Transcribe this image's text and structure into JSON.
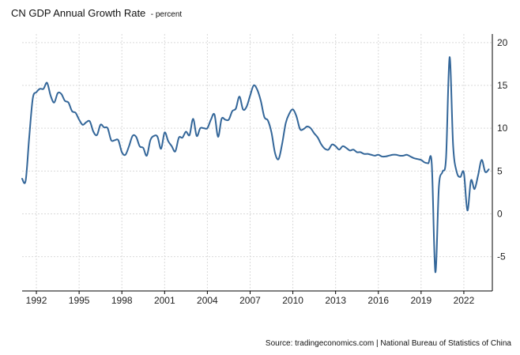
{
  "header": {
    "title": "CN GDP Annual Growth Rate",
    "subtitle": "- percent"
  },
  "footer": {
    "source": "Source: tradingeconomics.com | National Bureau of Statistics of China"
  },
  "colors": {
    "line": "#336699",
    "grid": "#d9d9d9",
    "axis": "#000000"
  },
  "chart_data": {
    "type": "line",
    "title": "CN GDP Annual Growth Rate",
    "subtitle": "- percent",
    "xlabel": "",
    "ylabel": "",
    "xlim": [
      1991.0,
      2024.0
    ],
    "ylim": [
      -9,
      21
    ],
    "x_ticks": [
      1992,
      1995,
      1998,
      2001,
      2004,
      2007,
      2010,
      2013,
      2016,
      2019,
      2022
    ],
    "y_ticks": [
      -5,
      0,
      5,
      10,
      15,
      20
    ],
    "y_axis_side": "right",
    "grid": true,
    "legend": "none",
    "series": [
      {
        "x": [
          1991.0,
          1991.25,
          1991.5,
          1991.75,
          1992.0,
          1992.25,
          1992.5,
          1992.75,
          1993.0,
          1993.25,
          1993.5,
          1993.75,
          1994.0,
          1994.25,
          1994.5,
          1994.75,
          1995.0,
          1995.25,
          1995.5,
          1995.75,
          1996.0,
          1996.25,
          1996.5,
          1996.75,
          1997.0,
          1997.25,
          1997.5,
          1997.75,
          1998.0,
          1998.25,
          1998.5,
          1998.75,
          1999.0,
          1999.25,
          1999.5,
          1999.75,
          2000.0,
          2000.25,
          2000.5,
          2000.75,
          2001.0,
          2001.25,
          2001.5,
          2001.75,
          2002.0,
          2002.25,
          2002.5,
          2002.75,
          2003.0,
          2003.25,
          2003.5,
          2003.75,
          2004.0,
          2004.25,
          2004.5,
          2004.75,
          2005.0,
          2005.25,
          2005.5,
          2005.75,
          2006.0,
          2006.25,
          2006.5,
          2006.75,
          2007.0,
          2007.25,
          2007.5,
          2007.75,
          2008.0,
          2008.25,
          2008.5,
          2008.75,
          2009.0,
          2009.25,
          2009.5,
          2009.75,
          2010.0,
          2010.25,
          2010.5,
          2010.75,
          2011.0,
          2011.25,
          2011.5,
          2011.75,
          2012.0,
          2012.25,
          2012.5,
          2012.75,
          2013.0,
          2013.25,
          2013.5,
          2013.75,
          2014.0,
          2014.25,
          2014.5,
          2014.75,
          2015.0,
          2015.25,
          2015.5,
          2015.75,
          2016.0,
          2016.25,
          2016.5,
          2016.75,
          2017.0,
          2017.25,
          2017.5,
          2017.75,
          2018.0,
          2018.25,
          2018.5,
          2018.75,
          2019.0,
          2019.25,
          2019.5,
          2019.75,
          2020.0,
          2020.25,
          2020.5,
          2020.75,
          2021.0,
          2021.25,
          2021.5,
          2021.75,
          2022.0,
          2022.25,
          2022.5,
          2022.75,
          2023.0,
          2023.25,
          2023.5,
          2023.75
        ],
        "values": [
          4.1,
          3.9,
          9.0,
          13.5,
          14.2,
          14.6,
          14.6,
          15.3,
          13.8,
          13.0,
          14.1,
          14.0,
          13.2,
          13.0,
          12.0,
          11.8,
          11.0,
          10.4,
          10.7,
          10.8,
          9.6,
          9.2,
          10.4,
          10.1,
          10.0,
          8.6,
          8.6,
          8.6,
          7.2,
          6.9,
          7.9,
          9.1,
          9.0,
          7.9,
          7.7,
          6.8,
          8.6,
          9.1,
          9.0,
          7.6,
          9.5,
          8.5,
          7.9,
          7.3,
          8.9,
          8.9,
          9.6,
          9.2,
          11.1,
          9.1,
          10.0,
          10.0,
          10.0,
          11.0,
          11.6,
          9.0,
          11.1,
          11.0,
          11.0,
          12.0,
          12.3,
          13.7,
          12.2,
          12.5,
          13.8,
          15.0,
          14.5,
          13.2,
          11.3,
          10.9,
          9.5,
          7.1,
          6.4,
          8.2,
          10.6,
          11.7,
          12.2,
          11.4,
          9.9,
          9.9,
          10.2,
          10.0,
          9.4,
          8.9,
          8.1,
          7.6,
          7.5,
          8.1,
          7.9,
          7.5,
          7.9,
          7.7,
          7.4,
          7.5,
          7.2,
          7.2,
          7.0,
          7.0,
          6.9,
          6.8,
          6.9,
          6.7,
          6.7,
          6.8,
          6.9,
          6.9,
          6.8,
          6.8,
          6.9,
          6.7,
          6.5,
          6.4,
          6.3,
          6.0,
          5.9,
          5.8,
          -6.8,
          3.2,
          4.9,
          6.5,
          18.3,
          7.9,
          4.9,
          4.3,
          4.8,
          0.4,
          3.9,
          2.9,
          4.5,
          6.3,
          4.9,
          5.2
        ]
      }
    ]
  }
}
